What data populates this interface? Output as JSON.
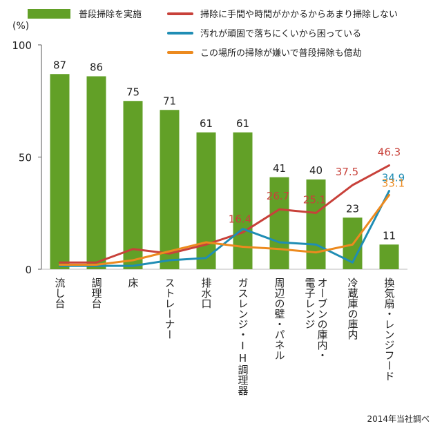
{
  "chart_data": {
    "type": "bar",
    "unit": "(%)",
    "ylim": [
      0,
      100
    ],
    "yticks": [
      "0",
      "50",
      "100"
    ],
    "categories": [
      "流し台",
      "調理台",
      "床",
      "ストレーナー",
      "排水口",
      "ガスレンジ・IH調理器",
      "周辺の壁・パネル",
      "オーブン・電子レンジ",
      "冷蔵庫の庫内",
      "換気扇・レンジフード"
    ],
    "categories_display": [
      [
        "流し台"
      ],
      [
        "調理台"
      ],
      [
        "床"
      ],
      [
        "ストレーナー"
      ],
      [
        "排水口"
      ],
      [
        "ガスレンジ・IH調理器"
      ],
      [
        "周辺の壁・パネル"
      ],
      [
        "オーブンの庫内・",
        "電子レンジ"
      ],
      [
        "冷蔵庫の庫内"
      ],
      [
        "換気扇・レンジフード"
      ]
    ],
    "bar_series": {
      "name": "普段掃除を実施",
      "color": "#62a027",
      "values": [
        87,
        86,
        75,
        71,
        61,
        61,
        41,
        40,
        23,
        11
      ]
    },
    "line_series": [
      {
        "name": "掃除に手間や時間がかかるからあまり掃除しない",
        "color": "#c8413a",
        "values": [
          3,
          3,
          9,
          7,
          11,
          16.4,
          26.7,
          25.1,
          37.5,
          46.3
        ],
        "labeled_indices": [
          5,
          6,
          7,
          8,
          9
        ]
      },
      {
        "name": "汚れが頑固で落ちにくいから困っている",
        "color": "#1f8db4",
        "values": [
          1.5,
          1.5,
          1.5,
          4,
          5,
          18,
          12,
          11,
          3,
          34.9
        ],
        "labeled_indices": [
          9
        ]
      },
      {
        "name": "この場所の掃除が嫌いで普段掃除も億劫",
        "color": "#ec8a1f",
        "values": [
          2,
          2,
          4,
          8,
          12,
          10,
          9,
          7.5,
          11,
          33.1
        ],
        "labeled_indices": [
          9
        ]
      }
    ],
    "source": "2014年当社調べ"
  }
}
